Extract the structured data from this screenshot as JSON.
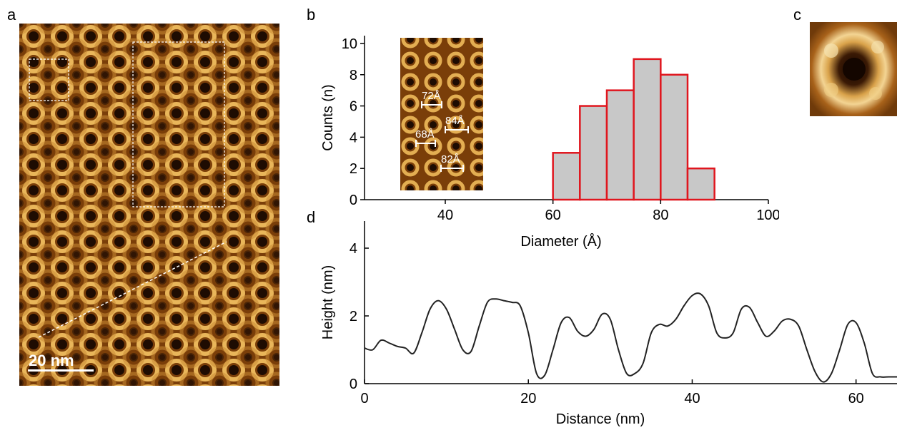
{
  "panels": {
    "a": "a",
    "b": "b",
    "c": "c",
    "d": "d"
  },
  "panel_a": {
    "scale_bar_label": "20 nm",
    "colors": {
      "dark": "#1e0c02",
      "mid": "#8a4a0e",
      "bright": "#f2cf7c"
    }
  },
  "panel_b_inset": {
    "measurements": [
      "72Å",
      "84Å",
      "68Å",
      "82Å"
    ]
  },
  "chart_data": [
    {
      "panel": "b",
      "type": "bar",
      "subtype": "histogram",
      "xlabel": "Diameter (Å)",
      "ylabel": "Counts (n)",
      "xlim": [
        25,
        100
      ],
      "ylim": [
        0,
        10.5
      ],
      "xticks": [
        40,
        60,
        80,
        100
      ],
      "yticks": [
        0,
        2,
        4,
        6,
        8,
        10
      ],
      "bins": [
        {
          "from": 60,
          "to": 65,
          "count": 3
        },
        {
          "from": 65,
          "to": 70,
          "count": 6
        },
        {
          "from": 70,
          "to": 75,
          "count": 7
        },
        {
          "from": 75,
          "to": 80,
          "count": 9
        },
        {
          "from": 80,
          "to": 85,
          "count": 8
        },
        {
          "from": 85,
          "to": 90,
          "count": 2
        }
      ],
      "bar_fill": "#c8c8c8",
      "bar_edge": "#e0161e",
      "grid": false
    },
    {
      "panel": "d",
      "type": "line",
      "xlabel": "Distance (nm)",
      "ylabel": "Height (nm)",
      "xlim": [
        0,
        65
      ],
      "ylim": [
        0,
        4.8
      ],
      "xticks": [
        0,
        20,
        40,
        60
      ],
      "yticks": [
        0,
        2,
        4
      ],
      "grid": false,
      "x": [
        0,
        1,
        2,
        3,
        4,
        5,
        6,
        7,
        8,
        9,
        10,
        11,
        12,
        13,
        14,
        15,
        16,
        17,
        18,
        19,
        20,
        21,
        22,
        23,
        24,
        25,
        26,
        27,
        28,
        29,
        30,
        31,
        32,
        33,
        34,
        35,
        36,
        37,
        38,
        39,
        40,
        41,
        42,
        43,
        44,
        45,
        46,
        47,
        48,
        49,
        50,
        51,
        52,
        53,
        54,
        55,
        56,
        57,
        58,
        59,
        60,
        61,
        62,
        63,
        64,
        65
      ],
      "y": [
        1.05,
        1.0,
        1.28,
        1.2,
        1.1,
        1.05,
        0.9,
        1.5,
        2.2,
        2.45,
        2.2,
        1.6,
        1.0,
        0.95,
        1.7,
        2.4,
        2.5,
        2.45,
        2.4,
        2.3,
        1.5,
        0.3,
        0.25,
        1.0,
        1.8,
        1.95,
        1.55,
        1.4,
        1.6,
        2.05,
        1.9,
        1.0,
        0.3,
        0.3,
        0.6,
        1.5,
        1.75,
        1.7,
        1.9,
        2.3,
        2.6,
        2.65,
        2.3,
        1.5,
        1.35,
        1.5,
        2.2,
        2.25,
        1.8,
        1.4,
        1.55,
        1.85,
        1.9,
        1.7,
        1.0,
        0.35,
        0.05,
        0.3,
        1.0,
        1.75,
        1.8,
        1.2,
        0.3,
        0.2,
        0.2,
        0.2
      ]
    }
  ]
}
